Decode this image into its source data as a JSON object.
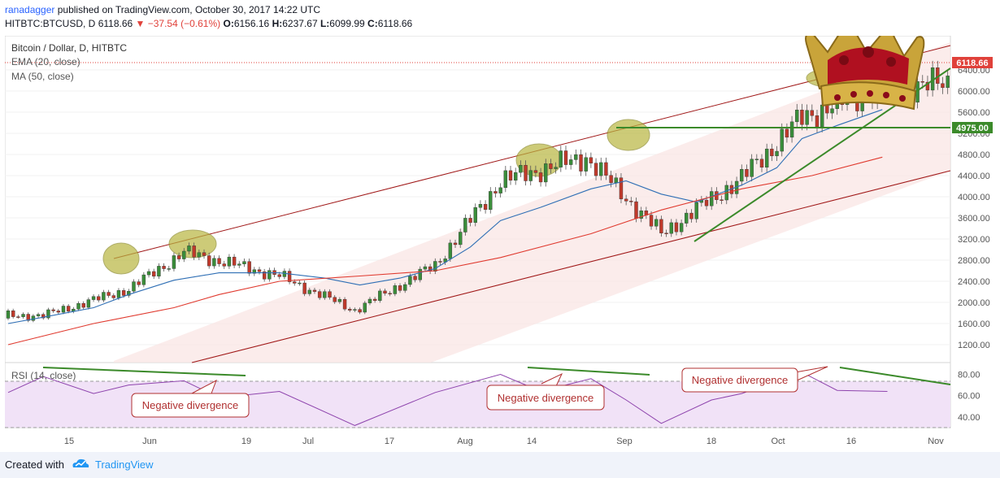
{
  "header": {
    "author": "ranadagger",
    "published_text": "published on TradingView.com, October 30, 2017 14:22 UTC",
    "symbol": "HITBTC:BTCUSD, D",
    "last": "6118.66",
    "change": "▼ −37.54 (−0.61%)",
    "o_label": "O:",
    "o": "6156.16",
    "h_label": "H:",
    "h": "6237.67",
    "l_label": "L:",
    "l": "6099.99",
    "c_label": "C:",
    "c": "6118.66"
  },
  "footer": {
    "created_with": "Created with",
    "brand": "TradingView"
  },
  "colors": {
    "up": "#3a8d3a",
    "down": "#c0392b",
    "ema": "#2f6fb5",
    "ma": "#e03a2f",
    "channel": "#a01818",
    "trend": "#3b8a2a",
    "rsi": "#8e44ad",
    "highlight": "#bdbd52"
  },
  "chart_data": [
    {
      "type": "line",
      "title": "Bitcoin / Dollar, D, HITBTC",
      "series": [
        {
          "name": "EMA (20, close)",
          "x": [
            "May 8",
            "May 15",
            "May 25",
            "Jun 1",
            "Jun 10",
            "Jun 19",
            "Jul 1",
            "Jul 10",
            "Jul 17",
            "Jul 25",
            "Aug 1",
            "Aug 8",
            "Aug 14",
            "Aug 22",
            "Sep 1",
            "Sep 8",
            "Sep 15",
            "Sep 22",
            "Oct 1",
            "Oct 8",
            "Oct 13",
            "Oct 20",
            "Oct 29"
          ],
          "values": [
            1600,
            1720,
            1900,
            2150,
            2420,
            2560,
            2560,
            2460,
            2330,
            2460,
            2640,
            3050,
            3550,
            3800,
            4150,
            4300,
            4050,
            3900,
            4220,
            4550,
            5100,
            5350,
            5650
          ]
        },
        {
          "name": "MA (50, close)",
          "x": [
            "May 8",
            "May 25",
            "Jun 10",
            "Jun 19",
            "Jul 1",
            "Jul 17",
            "Aug 1",
            "Aug 14",
            "Sep 1",
            "Sep 15",
            "Oct 1",
            "Oct 15",
            "Oct 29"
          ],
          "values": [
            1200,
            1600,
            1900,
            2150,
            2400,
            2500,
            2600,
            2850,
            3300,
            3750,
            4150,
            4400,
            4750
          ]
        }
      ],
      "candles_approx": {
        "note_units": "USD",
        "dates": [
          "May 15",
          "Jun 1",
          "Jun 12",
          "Jul 1",
          "Jul 16",
          "Aug 1",
          "Aug 14",
          "Aug 31",
          "Sep 15",
          "Oct 1",
          "Oct 13",
          "Oct 30"
        ],
        "close": [
          1750,
          2250,
          2950,
          2500,
          1850,
          2700,
          4300,
          4750,
          3300,
          4350,
          5500,
          6118.66
        ]
      },
      "horizontal_line": {
        "value": 4975.0,
        "label": "4975.00"
      },
      "last_price_label": "6118.66",
      "y_ticks": [
        "6400.00",
        "6000.00",
        "5600.00",
        "5200.00",
        "4800.00",
        "4400.00",
        "4000.00",
        "3600.00",
        "3200.00",
        "2800.00",
        "2400.00",
        "2000.00",
        "1600.00",
        "1200.00"
      ],
      "x_ticks": [
        "15",
        "Jun",
        "19",
        "Jul",
        "17",
        "Aug",
        "14",
        "Sep",
        "18",
        "Oct",
        "16",
        "Nov"
      ]
    },
    {
      "type": "line",
      "series": [
        {
          "name": "RSI (14, close)",
          "x": [
            "May 8",
            "May 15",
            "May 25",
            "Jun 1",
            "Jun 12",
            "Jun 19",
            "Jul 1",
            "Jul 16",
            "Aug 1",
            "Aug 14",
            "Aug 22",
            "Sep 1",
            "Sep 8",
            "Sep 15",
            "Sep 25",
            "Oct 1",
            "Oct 13",
            "Oct 20",
            "Oct 30"
          ],
          "values": [
            63,
            78,
            62,
            70,
            74,
            58,
            64,
            32,
            63,
            80,
            64,
            76,
            56,
            34,
            56,
            62,
            82,
            65,
            64
          ]
        }
      ],
      "y_ticks": [
        "80.00",
        "60.00",
        "40.00"
      ],
      "levels": [
        70,
        30
      ]
    }
  ],
  "annotations": {
    "neg_div_1": "Negative divergence",
    "neg_div_2": "Negative divergence",
    "neg_div_3": "Negative divergence"
  }
}
